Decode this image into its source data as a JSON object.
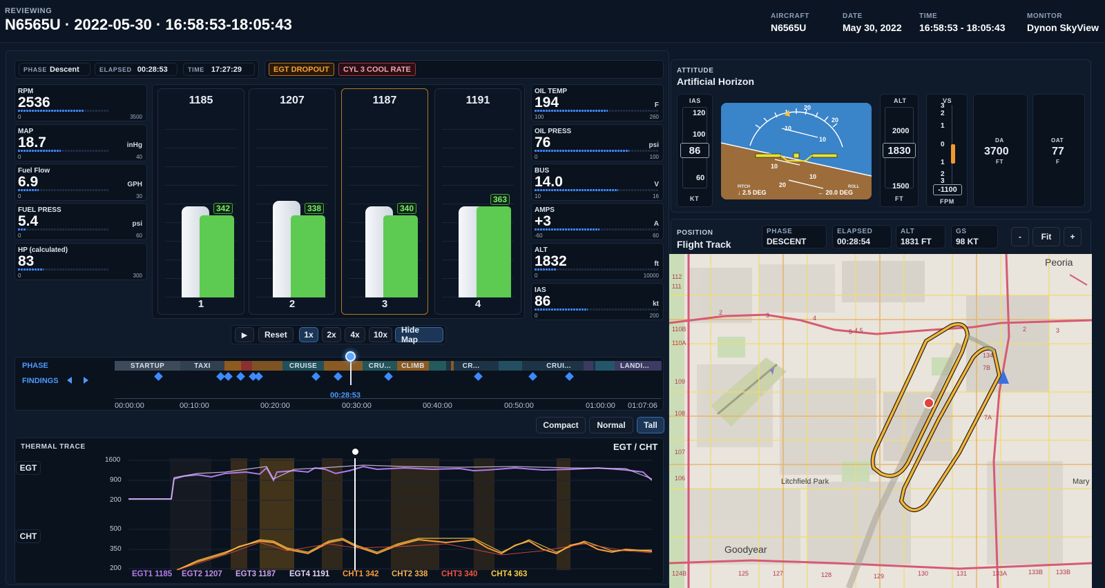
{
  "header": {
    "reviewing_label": "REVIEWING",
    "title": "N6565U · 2022-05-30 · 16:58:53-18:05:43",
    "aircraft_label": "AIRCRAFT",
    "aircraft": "N6565U",
    "date_label": "DATE",
    "date": "May 30, 2022",
    "time_label": "TIME",
    "time": "16:58:53 - 18:05:43",
    "monitor_label": "MONITOR",
    "monitor": "Dynon SkyView"
  },
  "status": {
    "phase_label": "PHASE",
    "phase": "Descent",
    "elapsed_label": "ELAPSED",
    "elapsed": "00:28:53",
    "time_label": "TIME",
    "time": "17:27:29",
    "alerts": [
      "EGT DROPOUT",
      "CYL 3 COOL RATE"
    ]
  },
  "left_gauges": [
    {
      "label": "RPM",
      "value": "2536",
      "unit": "",
      "min": "0",
      "max": "3500",
      "fraction": 0.72
    },
    {
      "label": "MAP",
      "value": "18.7",
      "unit": "inHg",
      "min": "0",
      "max": "40",
      "fraction": 0.47
    },
    {
      "label": "Fuel Flow",
      "value": "6.9",
      "unit": "GPH",
      "min": "0",
      "max": "30",
      "fraction": 0.23
    },
    {
      "label": "FUEL PRESS",
      "value": "5.4",
      "unit": "psi",
      "min": "0",
      "max": "60",
      "fraction": 0.09
    },
    {
      "label": "HP (calculated)",
      "value": "83",
      "unit": "",
      "min": "0",
      "max": "300",
      "fraction": 0.28
    }
  ],
  "cylinders": [
    {
      "number": "1",
      "egt": "1185",
      "cht": "342",
      "egt_fraction": 0.49,
      "cht_fraction": 0.44,
      "selected": false
    },
    {
      "number": "2",
      "egt": "1207",
      "cht": "338",
      "egt_fraction": 0.52,
      "cht_fraction": 0.44,
      "selected": false
    },
    {
      "number": "3",
      "egt": "1187",
      "cht": "340",
      "egt_fraction": 0.49,
      "cht_fraction": 0.44,
      "selected": true
    },
    {
      "number": "4",
      "egt": "1191",
      "cht": "363",
      "egt_fraction": 0.49,
      "cht_fraction": 0.49,
      "selected": false
    }
  ],
  "right_gauges": [
    {
      "label": "OIL TEMP",
      "value": "194",
      "unit": "F",
      "min": "100",
      "max": "260",
      "fraction": 0.59
    },
    {
      "label": "OIL PRESS",
      "value": "76",
      "unit": "psi",
      "min": "0",
      "max": "100",
      "fraction": 0.76
    },
    {
      "label": "BUS",
      "value": "14.0",
      "unit": "V",
      "min": "10",
      "max": "16",
      "fraction": 0.67
    },
    {
      "label": "AMPS",
      "value": "+3",
      "unit": "A",
      "min": "-60",
      "max": "60",
      "fraction": 0.52
    },
    {
      "label": "ALT",
      "value": "1832",
      "unit": "ft",
      "min": "0",
      "max": "10000",
      "fraction": 0.18
    },
    {
      "label": "IAS",
      "value": "86",
      "unit": "kt",
      "min": "0",
      "max": "200",
      "fraction": 0.43
    }
  ],
  "playback": {
    "play": "▶",
    "reset": "Reset",
    "speeds": [
      "1x",
      "2x",
      "4x",
      "10x"
    ],
    "active_speed": "1x",
    "hide_map": "Hide Map"
  },
  "timeline": {
    "phase_label": "PHASE",
    "findings_label": "FINDINGS",
    "phases": [
      "STARTUP",
      "TAXI",
      "CRUISE",
      "CRU...",
      "CLIMB",
      "CR...",
      "CRUI...",
      "LANDI..."
    ],
    "cursor_time": "00:28:53",
    "ticks": [
      "00:00:00",
      "00:10:00",
      "00:20:00",
      "00:30:00",
      "00:40:00",
      "00:50:00",
      "01:00:00",
      "01:07:06"
    ]
  },
  "view_modes": {
    "options": [
      "Compact",
      "Normal",
      "Tall"
    ],
    "active": "Tall"
  },
  "thermal": {
    "title": "THERMAL TRACE",
    "subtitle": "EGT / CHT",
    "egt_label": "EGT",
    "cht_label": "CHT",
    "egt_ticks": [
      "1600",
      "900",
      "200"
    ],
    "cht_ticks": [
      "500",
      "350",
      "200"
    ],
    "legend": [
      {
        "text": "EGT1 1185",
        "color": "#b27be8"
      },
      {
        "text": "EGT2 1207",
        "color": "#c08ae8"
      },
      {
        "text": "EGT3 1187",
        "color": "#c9a6ee"
      },
      {
        "text": "EGT4 1191",
        "color": "#e2d4f6"
      },
      {
        "text": "CHT1 342",
        "color": "#f59a3a"
      },
      {
        "text": "CHT2 338",
        "color": "#f7b04a"
      },
      {
        "text": "CHT3 340",
        "color": "#f0523d"
      },
      {
        "text": "CHT4 363",
        "color": "#f6c944"
      }
    ]
  },
  "attitude": {
    "label": "ATTITUDE",
    "title": "Artificial Horizon",
    "ias_label": "IAS",
    "ias_ticks": [
      "120",
      "100",
      "60"
    ],
    "ias_value": "86",
    "ias_unit": "KT",
    "pitch_label": "PITCH",
    "pitch": "↓ 2.5 DEG",
    "roll_label": "ROLL",
    "roll": "← 20.0 DEG",
    "alt_label": "ALT",
    "alt_ticks": [
      "2000",
      "1500"
    ],
    "alt_value": "1830",
    "alt_unit": "FT",
    "vs_label": "VS",
    "vs_ticks": [
      "3",
      "2",
      "1",
      "0",
      "1",
      "2",
      "3"
    ],
    "vs_value": "-1100",
    "vs_unit": "FPM",
    "da_label": "DA",
    "da_value": "3700",
    "da_unit": "FT",
    "oat_label": "OAT",
    "oat_value": "77",
    "oat_unit": "F"
  },
  "position": {
    "label": "POSITION",
    "title": "Flight Track",
    "phase_label": "PHASE",
    "phase": "DESCENT",
    "elapsed_label": "ELAPSED",
    "elapsed": "00:28:54",
    "alt_label": "ALT",
    "alt": "1831 FT",
    "gs_label": "GS",
    "gs": "98 KT",
    "zoom_out": "-",
    "fit": "Fit",
    "zoom_in": "+",
    "places": [
      "Peoria",
      "Litchfield Park",
      "Goodyear",
      "Mary"
    ],
    "road_numbers": [
      "112",
      "111",
      "2",
      "3",
      "4",
      "5",
      "110B",
      "110A",
      "109",
      "108",
      "107",
      "106",
      "124B",
      "125",
      "127",
      "128",
      "129",
      "130",
      "131",
      "133A",
      "133B",
      "133B",
      "134",
      "7B",
      "7A",
      "2",
      "3",
      "4.5"
    ]
  }
}
